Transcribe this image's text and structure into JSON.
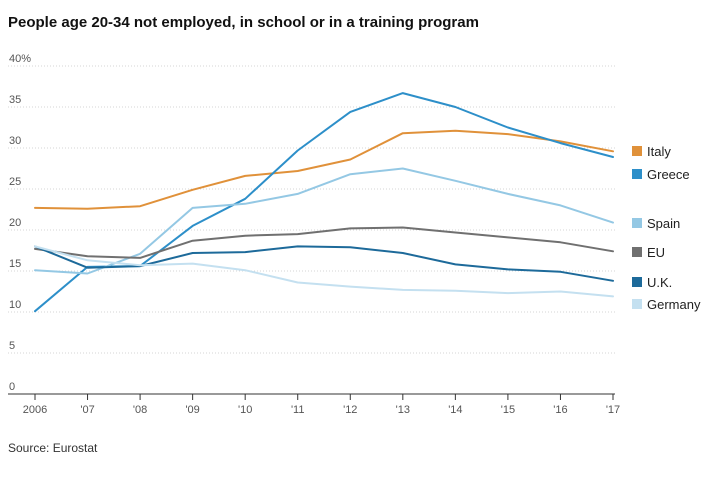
{
  "title": "People age 20-34 not employed, in school or in a training program",
  "source": "Source: Eurostat",
  "chart_data": {
    "type": "line",
    "title": "People age 20-34 not employed, in school or in a training program",
    "xlabel": "",
    "ylabel": "",
    "ylim": [
      0,
      40
    ],
    "yticks": [
      0,
      5,
      10,
      15,
      20,
      25,
      30,
      35,
      40
    ],
    "ytick_labels": [
      "0",
      "5",
      "10",
      "15",
      "20",
      "25",
      "30",
      "35",
      "40%"
    ],
    "x": [
      2006,
      2007,
      2008,
      2009,
      2010,
      2011,
      2012,
      2013,
      2014,
      2015,
      2016,
      2017
    ],
    "xtick_labels": [
      "2006",
      "'07",
      "'08",
      "'09",
      "'10",
      "'11",
      "'12",
      "'13",
      "'14",
      "'15",
      "'16",
      "'17"
    ],
    "grid": true,
    "legend": "right",
    "series": [
      {
        "name": "Italy",
        "color": "#e0913a",
        "values": [
          22.7,
          22.6,
          22.9,
          24.9,
          26.6,
          27.2,
          28.6,
          31.8,
          32.1,
          31.7,
          30.8,
          29.6
        ]
      },
      {
        "name": "Greece",
        "color": "#2d8fc9",
        "values": [
          10.1,
          15.5,
          15.6,
          20.5,
          23.8,
          29.7,
          34.4,
          36.7,
          35.0,
          32.5,
          30.6,
          28.9
        ]
      },
      {
        "name": "Spain",
        "color": "#94c8e4",
        "values": [
          15.1,
          14.7,
          17.1,
          22.7,
          23.2,
          24.4,
          26.8,
          27.5,
          26.0,
          24.4,
          23.0,
          20.9
        ]
      },
      {
        "name": "EU",
        "color": "#707070",
        "values": [
          17.7,
          16.8,
          16.6,
          18.7,
          19.3,
          19.5,
          20.2,
          20.3,
          19.7,
          19.1,
          18.5,
          17.4
        ]
      },
      {
        "name": "U.K.",
        "color": "#1d6a9a",
        "values": [
          18.0,
          15.4,
          15.6,
          17.2,
          17.3,
          18.0,
          17.9,
          17.2,
          15.8,
          15.2,
          14.9,
          13.8
        ]
      },
      {
        "name": "Germany",
        "color": "#c4e0f0",
        "values": [
          18.0,
          16.3,
          15.7,
          15.9,
          15.1,
          13.6,
          13.1,
          12.7,
          12.6,
          12.3,
          12.5,
          11.9
        ]
      }
    ]
  }
}
